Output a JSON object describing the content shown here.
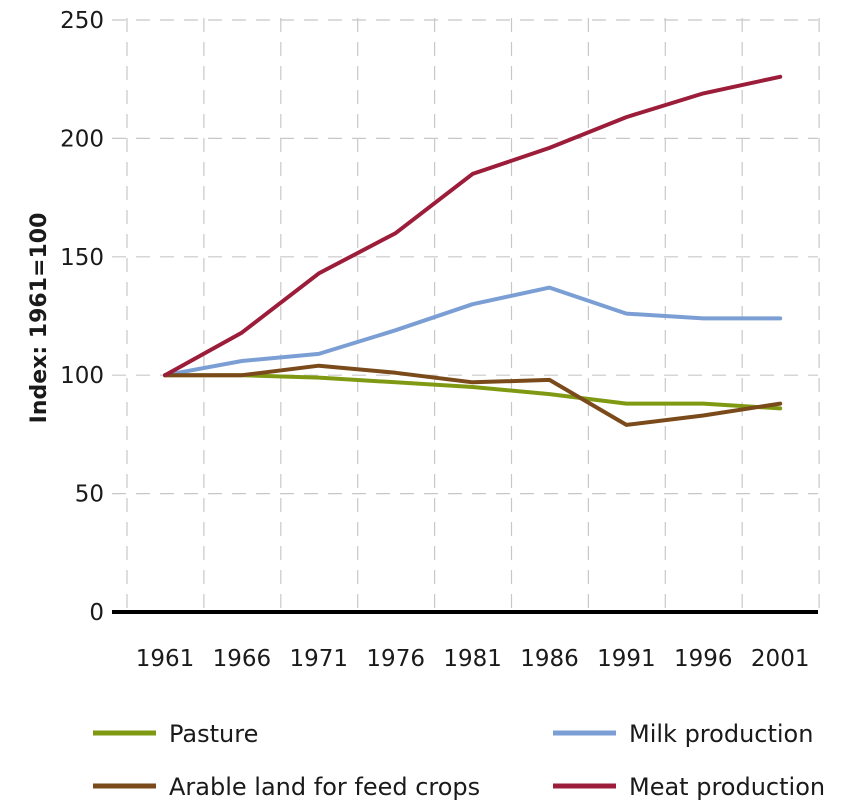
{
  "chart_data": {
    "type": "line",
    "title": "",
    "xlabel": "",
    "ylabel": "Index: 1961=100",
    "x": [
      "1961",
      "1966",
      "1971",
      "1976",
      "1981",
      "1986",
      "1991",
      "1996",
      "2001"
    ],
    "ylim": [
      0,
      250
    ],
    "yticks": [
      "0",
      "50",
      "100",
      "150",
      "200",
      "250"
    ],
    "grid": true,
    "legend_position": "bottom",
    "series": [
      {
        "name": "Pasture",
        "color": "#7f9a12",
        "values": [
          100,
          100,
          99,
          97,
          95,
          92,
          88,
          88,
          86
        ]
      },
      {
        "name": "Milk production",
        "color": "#7b9fd4",
        "values": [
          100,
          106,
          109,
          119,
          130,
          137,
          126,
          124,
          124
        ]
      },
      {
        "name": "Arable land for feed crops",
        "color": "#7a4a1a",
        "values": [
          100,
          100,
          104,
          101,
          97,
          98,
          79,
          83,
          88
        ]
      },
      {
        "name": "Meat production",
        "color": "#9c1d3a",
        "values": [
          100,
          118,
          143,
          160,
          185,
          196,
          209,
          219,
          226
        ]
      }
    ]
  }
}
